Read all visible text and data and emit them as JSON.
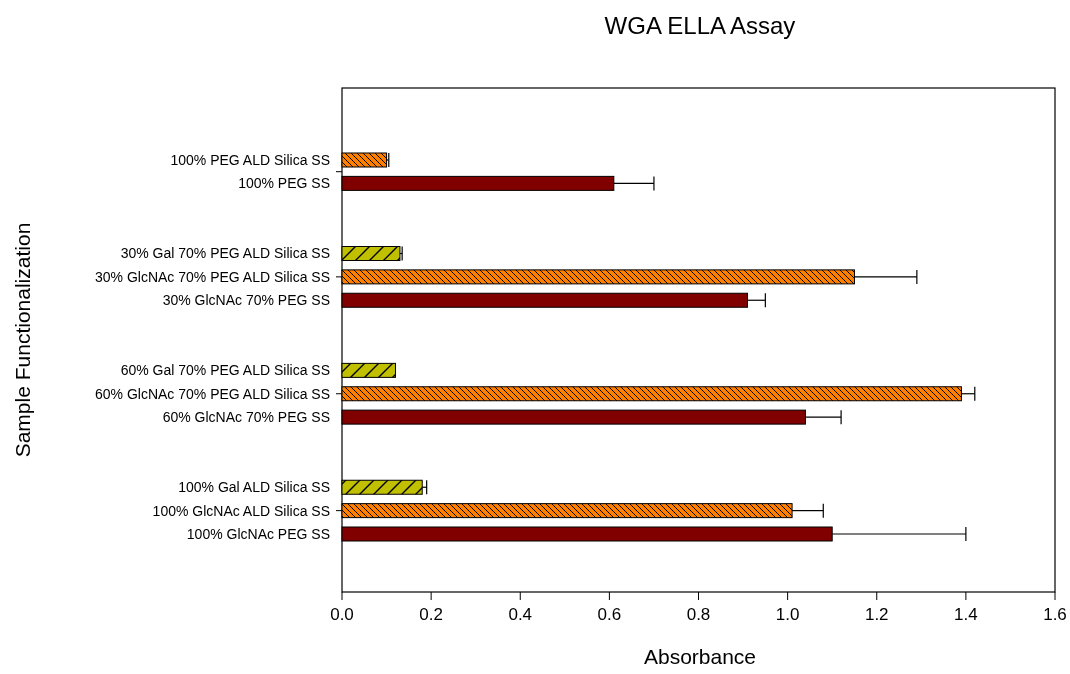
{
  "chart_data": {
    "type": "bar",
    "orientation": "horizontal",
    "title": "WGA ELLA Assay",
    "xlabel": "Absorbance",
    "ylabel": "Sample Functionalization",
    "categories": [
      "100% PEG ALD Silica SS",
      "100% PEG SS",
      null,
      null,
      "30% Gal 70% PEG ALD Silica SS",
      "30% GlcNAc 70% PEG ALD Silica SS",
      "30% GlcNAc 70% PEG SS",
      null,
      null,
      "60% Gal 70% PEG ALD Silica SS",
      "60% GlcNAc 70% PEG ALD Silica SS",
      "60% GlcNAc 70% PEG SS",
      null,
      null,
      "100% Gal ALD Silica SS",
      "100% GlcNAc ALD Silica SS",
      "100% GlcNAc PEG SS"
    ],
    "values": [
      0.1,
      0.61,
      null,
      null,
      0.13,
      1.15,
      0.91,
      null,
      null,
      0.12,
      1.39,
      1.04,
      null,
      null,
      0.18,
      1.01,
      1.1
    ],
    "errors": [
      [
        0.1,
        0.105
      ],
      [
        0.61,
        0.7
      ],
      null,
      null,
      [
        0.13,
        0.135
      ],
      [
        1.15,
        1.29
      ],
      [
        0.91,
        0.95
      ],
      null,
      null,
      null,
      [
        1.39,
        1.42
      ],
      [
        1.04,
        1.12
      ],
      null,
      null,
      [
        0.18,
        0.19
      ],
      [
        1.01,
        1.08
      ],
      [
        1.1,
        1.4
      ]
    ],
    "colors": [
      "#ff8000",
      "#800000",
      null,
      null,
      "#c0c000",
      "#ff8000",
      "#800000",
      null,
      null,
      "#c0c000",
      "#ff8000",
      "#800000",
      null,
      null,
      "#c0c000",
      "#ff8000",
      "#800000"
    ],
    "xlim": [
      0,
      1.6
    ],
    "xticks": [
      {
        "value": 0,
        "label": "0.0"
      },
      0.2,
      0.4,
      0.6,
      0.8,
      {
        "value": 1,
        "label": "1.0"
      },
      1.2,
      1.4,
      1.6
    ],
    "grid": false
  }
}
